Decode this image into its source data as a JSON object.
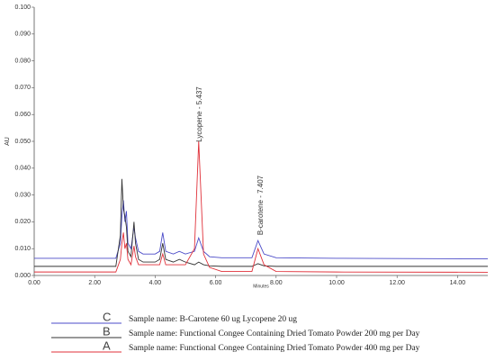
{
  "chart_data": {
    "type": "line",
    "x_label": "Minutes",
    "y_label": "AU",
    "xlim": [
      0,
      15
    ],
    "ylim": [
      0,
      0.1
    ],
    "xticks": [
      {
        "value": 0,
        "label": "0.00"
      },
      {
        "value": 2,
        "label": "2.00"
      },
      {
        "value": 4,
        "label": "4.00"
      },
      {
        "value": 6,
        "label": "6.00"
      },
      {
        "value": 8,
        "label": "8.00"
      },
      {
        "value": 10,
        "label": "10.00"
      },
      {
        "value": 12,
        "label": "12.00"
      },
      {
        "value": 14,
        "label": "14.00"
      }
    ],
    "yticks": [
      {
        "value": 0,
        "label": "0.000"
      },
      {
        "value": 0.01,
        "label": "0.010"
      },
      {
        "value": 0.02,
        "label": "0.020"
      },
      {
        "value": 0.03,
        "label": "0.030"
      },
      {
        "value": 0.04,
        "label": "0.040"
      },
      {
        "value": 0.05,
        "label": "0.050"
      },
      {
        "value": 0.06,
        "label": "0.060"
      },
      {
        "value": 0.07,
        "label": "0.070"
      },
      {
        "value": 0.08,
        "label": "0.080"
      },
      {
        "value": 0.09,
        "label": "0.090"
      },
      {
        "value": 0.1,
        "label": "0.100"
      }
    ],
    "annotations": [
      "Lycopene - 5.437",
      "B-carotene - 7.407"
    ],
    "x": [
      0,
      2.7,
      2.85,
      2.9,
      2.95,
      3.0,
      3.05,
      3.1,
      3.2,
      3.3,
      3.35,
      3.45,
      3.6,
      4.0,
      4.15,
      4.25,
      4.35,
      4.6,
      4.8,
      5.0,
      5.3,
      5.44,
      5.6,
      5.8,
      6.2,
      7.2,
      7.4,
      7.6,
      8.0,
      10,
      15
    ],
    "series": [
      {
        "label": "C",
        "name": "Sample name: B-Carotene 60 ug Lycopene 20 ug",
        "color": "#4b4bc8",
        "values": [
          0.0064,
          0.0064,
          0.012,
          0.022,
          0.028,
          0.02,
          0.024,
          0.012,
          0.01,
          0.018,
          0.014,
          0.009,
          0.008,
          0.008,
          0.009,
          0.016,
          0.009,
          0.008,
          0.009,
          0.008,
          0.009,
          0.014,
          0.009,
          0.007,
          0.0066,
          0.0066,
          0.013,
          0.008,
          0.0066,
          0.0064,
          0.0062
        ]
      },
      {
        "label": "B",
        "name": "Sample name: Functional Congee Containing Dried Tomato Powder 200 mg per Day",
        "color": "#333333",
        "values": [
          0.0034,
          0.0034,
          0.015,
          0.036,
          0.025,
          0.022,
          0.018,
          0.009,
          0.007,
          0.02,
          0.012,
          0.006,
          0.005,
          0.005,
          0.006,
          0.012,
          0.006,
          0.005,
          0.006,
          0.005,
          0.004,
          0.005,
          0.004,
          0.0036,
          0.0034,
          0.0034,
          0.0044,
          0.0036,
          0.0034,
          0.0034,
          0.0034
        ]
      },
      {
        "label": "A",
        "name": "Sample name: Functional Congee Containing Dried Tomato Powder 400 mg per Day",
        "color": "#e0313a",
        "values": [
          0.0013,
          0.0013,
          0.006,
          0.012,
          0.016,
          0.01,
          0.012,
          0.006,
          0.004,
          0.011,
          0.007,
          0.004,
          0.004,
          0.004,
          0.004,
          0.008,
          0.004,
          0.004,
          0.004,
          0.004,
          0.01,
          0.05,
          0.008,
          0.003,
          0.0015,
          0.0015,
          0.01,
          0.004,
          0.0015,
          0.0013,
          0.0012
        ]
      }
    ]
  }
}
